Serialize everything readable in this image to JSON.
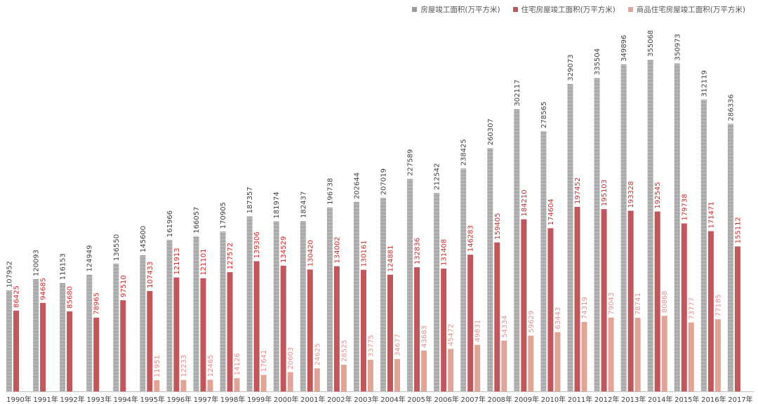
{
  "chart_data": {
    "type": "bar",
    "title": "",
    "xlabel": "",
    "ylabel": "",
    "ylim": [
      0,
      370000
    ],
    "grid": false,
    "legend_position": "top-right",
    "categories": [
      "1990年",
      "1991年",
      "1992年",
      "1993年",
      "1994年",
      "1995年",
      "1996年",
      "1997年",
      "1998年",
      "1999年",
      "2000年",
      "2001年",
      "2002年",
      "2003年",
      "2004年",
      "2005年",
      "2006年",
      "2007年",
      "2008年",
      "2009年",
      "2010年",
      "2011年",
      "2012年",
      "2013年",
      "2014年",
      "2015年",
      "2016年",
      "2017年"
    ],
    "series": [
      {
        "name": "房屋竣工面积(万平方米)",
        "color": "#9a9a9a",
        "label_color": "#404040",
        "pattern": "horizontal-stripes",
        "values": [
          107952,
          120093,
          116153,
          124949,
          136550,
          145600,
          161966,
          166057,
          170905,
          187357,
          181974,
          182437,
          196738,
          202644,
          207019,
          227589,
          212542,
          238425,
          260307,
          302117,
          278565,
          329073,
          335504,
          349896,
          355068,
          350973,
          312119,
          286336
        ]
      },
      {
        "name": "住宅房屋竣工面积(万平方米)",
        "color": "#c0575d",
        "label_color": "#d12a2a",
        "values": [
          86425,
          94685,
          85680,
          78965,
          97510,
          107433,
          121913,
          121101,
          127572,
          139306,
          134529,
          130420,
          134002,
          130161,
          124881,
          132836,
          131408,
          146283,
          159405,
          184210,
          174604,
          197452,
          195103,
          193328,
          192545,
          179738,
          171471,
          155112
        ]
      },
      {
        "name": "商品住宅房屋竣工面积(万平方米)",
        "color": "#e0a596",
        "label_color": "#e58f8f",
        "values": [
          null,
          null,
          null,
          null,
          null,
          11951,
          12233,
          12465,
          14126,
          17641,
          20603,
          24625,
          28525,
          33775,
          34677,
          43683,
          45472,
          49831,
          54334,
          59629,
          63443,
          74319,
          79043,
          78741,
          80868,
          73777,
          77185,
          null
        ]
      }
    ]
  }
}
